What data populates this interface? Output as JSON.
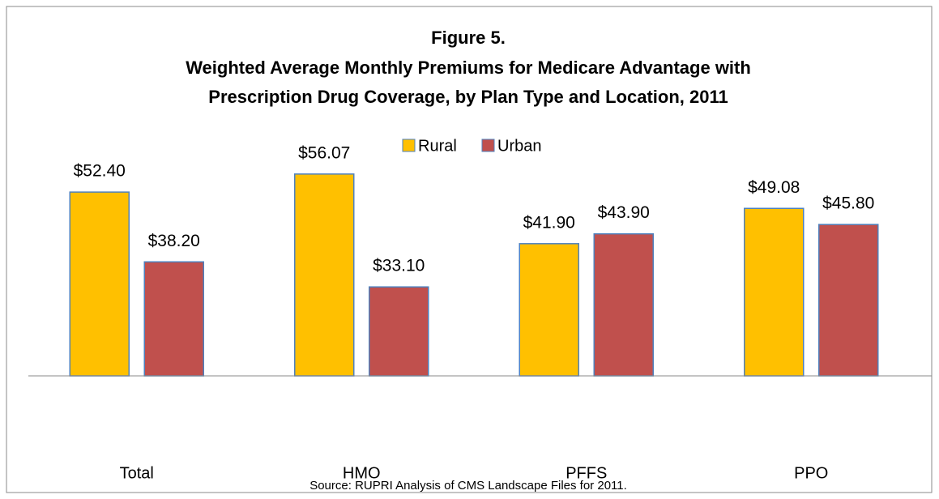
{
  "chart_data": {
    "type": "bar",
    "title": "Figure 5.",
    "subtitle": [
      "Weighted Average Monthly Premiums for Medicare Advantage with",
      "Prescription Drug Coverage, by Plan Type and Location, 2011"
    ],
    "categories": [
      "Total",
      "HMO",
      "PFFS",
      "PPO"
    ],
    "series": [
      {
        "name": "Rural",
        "color": "#ffc000",
        "values": [
          52.4,
          56.07,
          41.9,
          49.08
        ],
        "value_labels": [
          "$52.40",
          "$56.07",
          "$41.90",
          "$49.08"
        ]
      },
      {
        "name": "Urban",
        "color": "#c0504d",
        "values": [
          38.2,
          33.1,
          43.9,
          45.8
        ],
        "value_labels": [
          "$38.20",
          "$33.10",
          "$43.90",
          "$45.80"
        ]
      }
    ],
    "ylim": [
      15,
      60
    ],
    "legend": "top",
    "source": "Source: RUPRI Analysis of CMS Landscape Files for 2011."
  }
}
